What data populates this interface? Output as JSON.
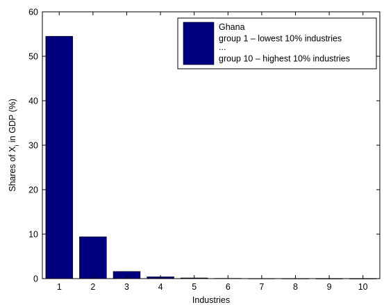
{
  "chart_data": {
    "type": "bar",
    "categories": [
      "1",
      "2",
      "3",
      "4",
      "5",
      "6",
      "7",
      "8",
      "9",
      "10"
    ],
    "values": [
      54.5,
      9.4,
      1.6,
      0.4,
      0.15,
      0.06,
      0.03,
      0.02,
      0.01,
      0.01
    ],
    "xlabel": "Industries",
    "ylabel": "Shares of X",
    "ylabel_subscript": "i",
    "ylabel_suffix": " in GDP (%)",
    "ylim": [
      0,
      60
    ],
    "yticks": [
      0,
      10,
      20,
      30,
      40,
      50,
      60
    ],
    "bar_color": "#00007f",
    "grid": false,
    "legend": {
      "placement": "top-right",
      "lines": [
        "Ghana",
        "group 1 – lowest 10% industries",
        "...",
        "group 10 – highest 10% industries"
      ]
    }
  }
}
